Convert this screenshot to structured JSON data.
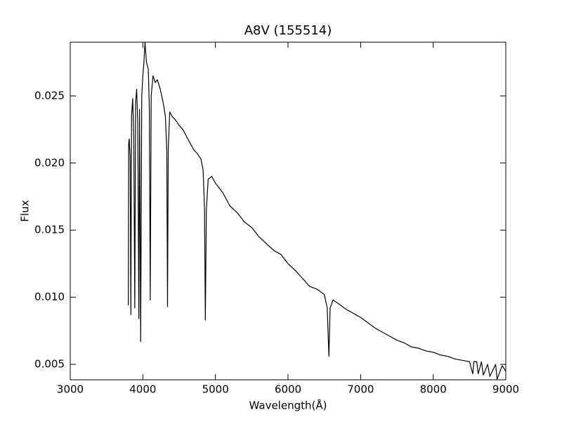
{
  "chart_data": {
    "type": "line",
    "title": "A8V (155514)",
    "x_label": "Wavelength(Å)",
    "y_label": "Flux",
    "x": [
      3800,
      3805,
      3812,
      3825,
      3835,
      3845,
      3860,
      3875,
      3889,
      3900,
      3915,
      3930,
      3945,
      3955,
      3970,
      3985,
      4000,
      4015,
      4030,
      4050,
      4075,
      4090,
      4102,
      4115,
      4140,
      4170,
      4200,
      4240,
      4280,
      4310,
      4330,
      4340,
      4350,
      4370,
      4400,
      4450,
      4500,
      4550,
      4600,
      4650,
      4700,
      4750,
      4800,
      4830,
      4850,
      4861,
      4875,
      4900,
      4950,
      5000,
      5100,
      5200,
      5300,
      5400,
      5500,
      5600,
      5700,
      5800,
      5900,
      6000,
      6100,
      6200,
      6300,
      6400,
      6500,
      6540,
      6563,
      6580,
      6620,
      6700,
      6800,
      6900,
      7000,
      7100,
      7200,
      7300,
      7400,
      7500,
      7600,
      7700,
      7800,
      7900,
      8000,
      8100,
      8200,
      8300,
      8400,
      8500,
      8545,
      8560,
      8600,
      8620,
      8665,
      8690,
      8750,
      8780,
      8860,
      8880,
      8950,
      9000
    ],
    "series": [
      {
        "name": "A8V",
        "color": "#000000",
        "values": [
          0.0094,
          0.0215,
          0.0218,
          0.0205,
          0.0087,
          0.0235,
          0.0248,
          0.022,
          0.0092,
          0.0245,
          0.0255,
          0.023,
          0.0084,
          0.024,
          0.0067,
          0.025,
          0.0265,
          0.0275,
          0.029,
          0.0275,
          0.027,
          0.024,
          0.0098,
          0.025,
          0.0265,
          0.026,
          0.0262,
          0.0255,
          0.0245,
          0.0235,
          0.021,
          0.0093,
          0.021,
          0.0238,
          0.0235,
          0.0232,
          0.0228,
          0.0225,
          0.022,
          0.0215,
          0.021,
          0.0207,
          0.0203,
          0.0195,
          0.0165,
          0.0083,
          0.0165,
          0.0188,
          0.019,
          0.0185,
          0.0178,
          0.0168,
          0.0163,
          0.0156,
          0.0152,
          0.0145,
          0.014,
          0.0135,
          0.0132,
          0.0125,
          0.012,
          0.0114,
          0.0108,
          0.0106,
          0.0102,
          0.0092,
          0.0056,
          0.0092,
          0.0098,
          0.0095,
          0.0091,
          0.0088,
          0.0085,
          0.0081,
          0.0077,
          0.0074,
          0.0071,
          0.0068,
          0.0066,
          0.0063,
          0.0062,
          0.006,
          0.0059,
          0.0057,
          0.0056,
          0.0054,
          0.0053,
          0.0052,
          0.0043,
          0.0052,
          0.0052,
          0.0043,
          0.0052,
          0.0042,
          0.005,
          0.0041,
          0.005,
          0.0039,
          0.0049,
          0.0045
        ]
      }
    ],
    "xlim": [
      3000,
      9000
    ],
    "xticks": [
      3000,
      4000,
      5000,
      6000,
      7000,
      8000,
      9000
    ],
    "ylim": [
      0.00385,
      0.029
    ],
    "yticks": [
      0.005,
      {
        "value": 0.01,
        "label": "0.010"
      },
      0.015,
      {
        "value": 0.02,
        "label": "0.020"
      },
      0.025
    ],
    "grid": false
  }
}
